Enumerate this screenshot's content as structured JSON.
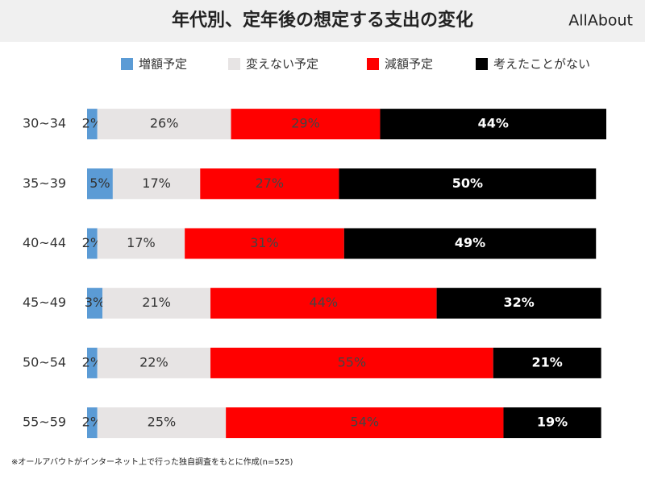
{
  "chart_data": {
    "type": "stacked-bar-horizontal",
    "title": "年代別、定年後の想定する支出の変化",
    "logo": "AllAbout",
    "footnote": "※オールアバウトがインターネット上で行った独自調査をもとに作成(n=525)",
    "categories": [
      "30~34",
      "35~39",
      "40~44",
      "45~49",
      "50~54",
      "55~59"
    ],
    "series": [
      {
        "name": "増額予定",
        "color": "#5b9bd5",
        "values": [
          2,
          5,
          2,
          3,
          2,
          2
        ],
        "value_labels": [
          "2%",
          "5%",
          "2%",
          "3%",
          "2%",
          "2%"
        ]
      },
      {
        "name": "変えない予定",
        "color": "#e7e4e4",
        "values": [
          26,
          17,
          17,
          21,
          22,
          25
        ],
        "value_labels": [
          "26%",
          "17%",
          "17%",
          "21%",
          "22%",
          "25%"
        ]
      },
      {
        "name": "減額予定",
        "color": "#ff0000",
        "values": [
          29,
          27,
          31,
          44,
          55,
          54
        ],
        "value_labels": [
          "29%",
          "27%",
          "31%",
          "44%",
          "55%",
          "54%"
        ]
      },
      {
        "name": "考えたことがない",
        "color": "#000000",
        "values": [
          44,
          50,
          49,
          32,
          21,
          19
        ],
        "value_labels": [
          "44%",
          "50%",
          "49%",
          "32%",
          "21%",
          "19%"
        ]
      }
    ]
  }
}
